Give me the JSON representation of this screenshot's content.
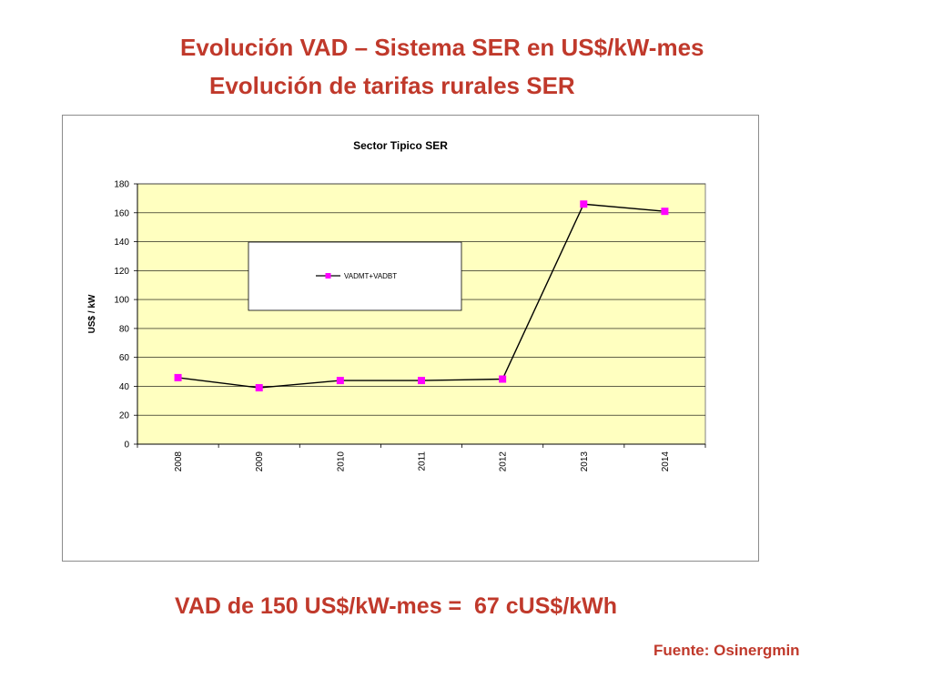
{
  "slide": {
    "title": "Evolución VAD – Sistema SER en US$/kW-mes",
    "subtitle": "Evolución de tarifas rurales SER",
    "note": "VAD de 150 US$/kW-mes =  67 cUS$/kWh",
    "source": "Fuente: Osinergmin"
  },
  "colors": {
    "title_red": "#c0392b",
    "plot_background": "#ffffc0",
    "series_line": "#000000",
    "marker": "#ff00ff",
    "gridline": "#000000"
  },
  "chart_data": {
    "type": "line",
    "title": "Sector Tipico SER",
    "xlabel": "",
    "ylabel": "US$ / kW",
    "categories": [
      "2008",
      "2009",
      "2010",
      "2011",
      "2012",
      "2013",
      "2014"
    ],
    "series": [
      {
        "name": "VADMT+VADBT",
        "values": [
          46,
          39,
          44,
          44,
          45,
          166,
          161
        ]
      }
    ],
    "ylim": [
      0,
      180
    ],
    "yticks": [
      0,
      20,
      40,
      60,
      80,
      100,
      120,
      140,
      160,
      180
    ],
    "grid": true,
    "legend_position": "upper-center"
  }
}
